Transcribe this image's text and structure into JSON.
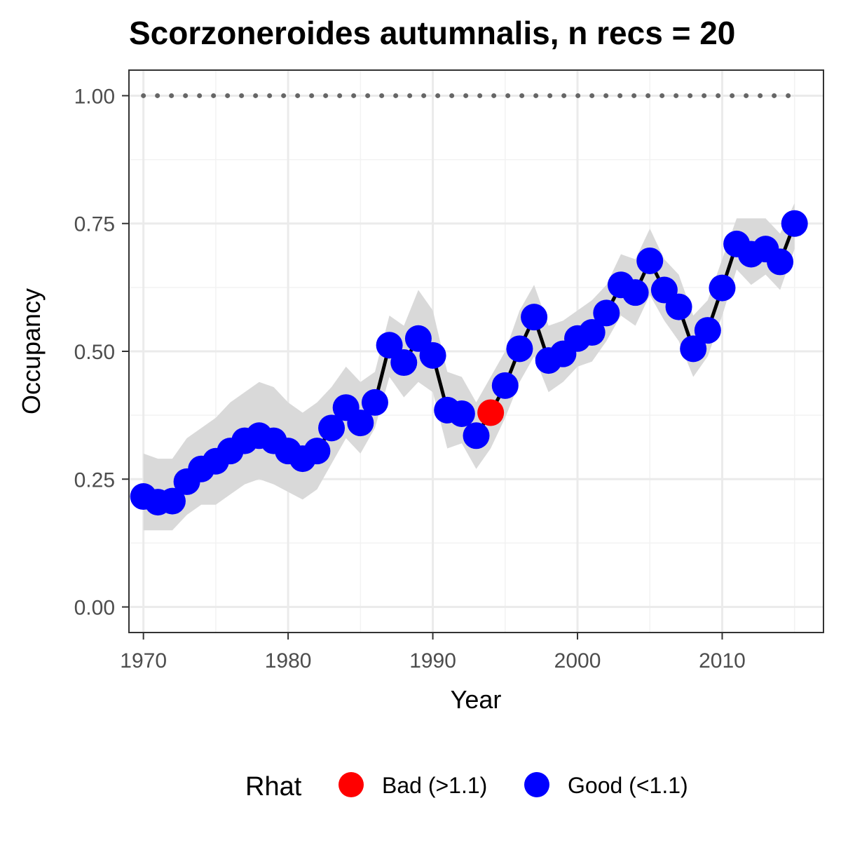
{
  "chart_data": {
    "type": "line",
    "title": "Scorzoneroides autumnalis, n recs = 20",
    "xlabel": "Year",
    "ylabel": "Occupancy",
    "xlim": [
      1969,
      2017
    ],
    "ylim": [
      -0.05,
      1.05
    ],
    "xticks": [
      1970,
      1980,
      1990,
      2000,
      2010
    ],
    "yticks": [
      0.0,
      0.25,
      0.5,
      0.75,
      1.0
    ],
    "ytick_labels": [
      "0.00",
      "0.25",
      "0.50",
      "0.75",
      "1.00"
    ],
    "grid": true,
    "legend": {
      "title": "Rhat",
      "position": "bottom",
      "entries": [
        {
          "label": "Bad (>1.1)",
          "color": "#ff0000"
        },
        {
          "label": "Good (<1.1)",
          "color": "#0000ff"
        }
      ]
    },
    "colors": {
      "good": "#0000ff",
      "bad": "#ff0000",
      "line": "#000000",
      "ribbon": "#d9d9d9",
      "reference": "#666666"
    },
    "reference_line": {
      "y": 1.0,
      "style": "dotted"
    },
    "x": [
      1970,
      1971,
      1972,
      1973,
      1974,
      1975,
      1976,
      1977,
      1978,
      1979,
      1980,
      1981,
      1982,
      1983,
      1984,
      1985,
      1986,
      1987,
      1988,
      1989,
      1990,
      1991,
      1992,
      1993,
      1994,
      1995,
      1996,
      1997,
      1998,
      1999,
      2000,
      2001,
      2002,
      2003,
      2004,
      2005,
      2006,
      2007,
      2008,
      2009,
      2010,
      2011,
      2012,
      2013,
      2014,
      2015
    ],
    "y": [
      0.216,
      0.205,
      0.207,
      0.245,
      0.27,
      0.285,
      0.305,
      0.325,
      0.335,
      0.325,
      0.305,
      0.29,
      0.305,
      0.35,
      0.39,
      0.36,
      0.4,
      0.512,
      0.478,
      0.525,
      0.492,
      0.385,
      0.378,
      0.335,
      0.38,
      0.433,
      0.505,
      0.567,
      0.482,
      0.495,
      0.525,
      0.537,
      0.575,
      0.63,
      0.615,
      0.677,
      0.62,
      0.587,
      0.505,
      0.541,
      0.624,
      0.71,
      0.69,
      0.7,
      0.675,
      0.75
    ],
    "lower": [
      0.15,
      0.15,
      0.15,
      0.18,
      0.2,
      0.2,
      0.22,
      0.24,
      0.25,
      0.24,
      0.225,
      0.21,
      0.23,
      0.28,
      0.33,
      0.3,
      0.35,
      0.45,
      0.41,
      0.44,
      0.42,
      0.31,
      0.32,
      0.27,
      0.31,
      0.37,
      0.44,
      0.49,
      0.42,
      0.44,
      0.47,
      0.48,
      0.52,
      0.57,
      0.55,
      0.61,
      0.56,
      0.52,
      0.45,
      0.49,
      0.57,
      0.66,
      0.63,
      0.65,
      0.62,
      0.7
    ],
    "upper": [
      0.3,
      0.29,
      0.29,
      0.33,
      0.35,
      0.37,
      0.4,
      0.42,
      0.44,
      0.43,
      0.4,
      0.38,
      0.4,
      0.43,
      0.47,
      0.44,
      0.46,
      0.57,
      0.55,
      0.62,
      0.58,
      0.46,
      0.45,
      0.4,
      0.45,
      0.5,
      0.58,
      0.63,
      0.55,
      0.56,
      0.58,
      0.6,
      0.63,
      0.69,
      0.68,
      0.74,
      0.68,
      0.65,
      0.57,
      0.6,
      0.68,
      0.76,
      0.76,
      0.76,
      0.73,
      0.79
    ],
    "rhat_status": [
      "good",
      "good",
      "good",
      "good",
      "good",
      "good",
      "good",
      "good",
      "good",
      "good",
      "good",
      "good",
      "good",
      "good",
      "good",
      "good",
      "good",
      "good",
      "good",
      "good",
      "good",
      "good",
      "good",
      "good",
      "bad",
      "good",
      "good",
      "good",
      "good",
      "good",
      "good",
      "good",
      "good",
      "good",
      "good",
      "good",
      "good",
      "good",
      "good",
      "good",
      "good",
      "good",
      "good",
      "good",
      "good",
      "good"
    ]
  }
}
